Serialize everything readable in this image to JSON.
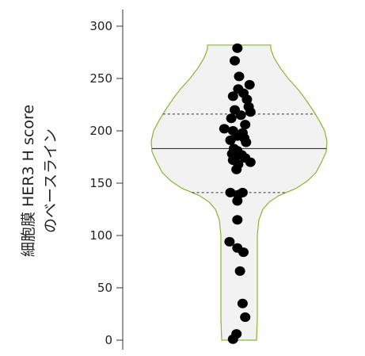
{
  "chart_data": {
    "type": "scatter",
    "subtype": "violin-with-jittered-points",
    "ylabel_lines": [
      "細胞膜 HER3 H score",
      "のベースライン"
    ],
    "ylim": [
      0,
      300
    ],
    "yticks": [
      0,
      50,
      100,
      150,
      200,
      250,
      300
    ],
    "grid": false,
    "legend": "none",
    "violin": {
      "fill_color": "#f2f2f2",
      "outline_color": "#86b832",
      "median": 183,
      "q1": 141,
      "q3": 216,
      "min": 0,
      "max": 282
    },
    "points": [
      {
        "x": -0.02,
        "y": 279
      },
      {
        "x": -0.05,
        "y": 267
      },
      {
        "x": 0.0,
        "y": 252
      },
      {
        "x": 0.12,
        "y": 244
      },
      {
        "x": -0.01,
        "y": 240
      },
      {
        "x": 0.05,
        "y": 236
      },
      {
        "x": -0.07,
        "y": 233
      },
      {
        "x": 0.09,
        "y": 230
      },
      {
        "x": 0.11,
        "y": 223
      },
      {
        "x": -0.05,
        "y": 220
      },
      {
        "x": 0.13,
        "y": 218
      },
      {
        "x": 0.02,
        "y": 215
      },
      {
        "x": -0.09,
        "y": 212
      },
      {
        "x": 0.07,
        "y": 206
      },
      {
        "x": -0.17,
        "y": 202
      },
      {
        "x": -0.07,
        "y": 200
      },
      {
        "x": 0.04,
        "y": 198
      },
      {
        "x": -0.02,
        "y": 195
      },
      {
        "x": 0.06,
        "y": 193
      },
      {
        "x": -0.1,
        "y": 191
      },
      {
        "x": 0.08,
        "y": 189
      },
      {
        "x": -0.06,
        "y": 183
      },
      {
        "x": -0.02,
        "y": 181
      },
      {
        "x": -0.08,
        "y": 178
      },
      {
        "x": 0.03,
        "y": 177
      },
      {
        "x": -0.04,
        "y": 175
      },
      {
        "x": 0.07,
        "y": 174
      },
      {
        "x": -0.07,
        "y": 172
      },
      {
        "x": 0.13,
        "y": 170
      },
      {
        "x": -0.01,
        "y": 168
      },
      {
        "x": -0.03,
        "y": 163
      },
      {
        "x": -0.1,
        "y": 141
      },
      {
        "x": 0.04,
        "y": 141
      },
      {
        "x": -0.01,
        "y": 139
      },
      {
        "x": -0.02,
        "y": 133
      },
      {
        "x": -0.02,
        "y": 115
      },
      {
        "x": -0.11,
        "y": 94
      },
      {
        "x": -0.02,
        "y": 88
      },
      {
        "x": 0.05,
        "y": 84
      },
      {
        "x": 0.01,
        "y": 66
      },
      {
        "x": 0.04,
        "y": 35
      },
      {
        "x": 0.07,
        "y": 22
      },
      {
        "x": -0.03,
        "y": 6
      },
      {
        "x": -0.07,
        "y": 1
      }
    ]
  }
}
